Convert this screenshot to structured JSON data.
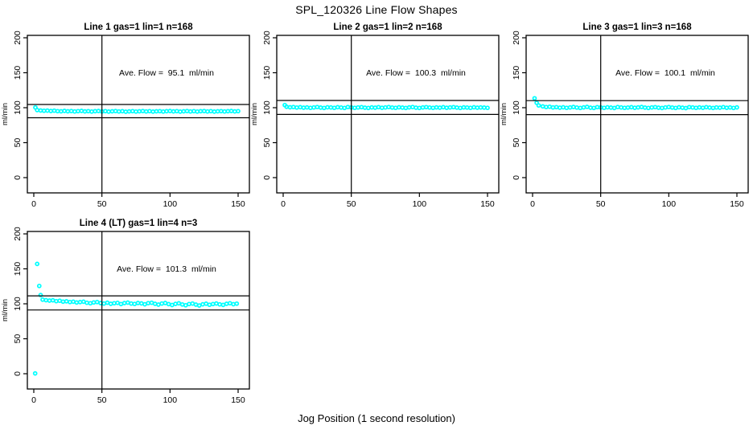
{
  "page": {
    "main_title": "SPL_120326  Line Flow Shapes",
    "x_axis_label": "Jog Position (1 second resolution)",
    "background_color": "#FFFFFF",
    "point_color": "#00FFFF",
    "line_color": "#000000"
  },
  "chart_data": [
    {
      "type": "scatter",
      "title": "Line 1 gas=1 lin=1 n=168",
      "annotation": "Ave. Flow =  95.1  ml/min",
      "ave_flow": 95.1,
      "ylabel": "ml/min",
      "xticks": [
        0,
        50,
        100,
        150
      ],
      "yticks": [
        0,
        50,
        100,
        150,
        200
      ],
      "xlim": [
        0,
        150
      ],
      "ylim": [
        0,
        200
      ],
      "grid": false,
      "ref_lines_y": [
        104.6,
        85.6
      ],
      "vline_x": 50,
      "row": 0,
      "col": 0,
      "x": [
        1.2,
        2.5,
        5,
        7.5,
        10,
        12.5,
        15,
        17.5,
        20,
        22.5,
        25,
        27.5,
        30,
        32.5,
        35,
        37.5,
        40,
        42.5,
        45,
        47.5,
        50,
        52.5,
        55,
        57.5,
        60,
        62.5,
        65,
        67.5,
        70,
        72.5,
        75,
        77.5,
        80,
        82.5,
        85,
        87.5,
        90,
        92.5,
        95,
        97.5,
        100,
        102.5,
        105,
        107.5,
        110,
        112.5,
        115,
        117.5,
        120,
        122.5,
        125,
        127.5,
        130,
        132.5,
        135,
        137.5,
        140,
        142.5,
        145,
        147.5,
        150
      ],
      "y": [
        100.4,
        96.6,
        96.0,
        95.6,
        95.9,
        95.3,
        95.7,
        95.1,
        94.8,
        95.4,
        94.8,
        95.2,
        94.6,
        95.0,
        95.4,
        94.7,
        95.1,
        94.5,
        94.9,
        95.3,
        94.6,
        95.0,
        94.4,
        94.8,
        95.2,
        94.6,
        94.9,
        94.3,
        94.7,
        95.1,
        94.5,
        94.8,
        95.2,
        94.6,
        95.0,
        94.4,
        94.8,
        95.1,
        94.5,
        94.9,
        95.3,
        94.7,
        95.0,
        94.4,
        94.8,
        95.2,
        94.6,
        95.0,
        94.5,
        94.9,
        95.2,
        94.6,
        95.0,
        94.4,
        94.8,
        95.1,
        94.6,
        94.9,
        95.3,
        94.7,
        95.0
      ]
    },
    {
      "type": "scatter",
      "title": "Line 2 gas=1 lin=2 n=168",
      "annotation": "Ave. Flow =  100.3  ml/min",
      "ave_flow": 100.3,
      "ylabel": "ml/min",
      "xticks": [
        0,
        50,
        100,
        150
      ],
      "yticks": [
        0,
        50,
        100,
        150,
        200
      ],
      "xlim": [
        0,
        150
      ],
      "ylim": [
        0,
        200
      ],
      "grid": false,
      "ref_lines_y": [
        110.3,
        90.3
      ],
      "vline_x": 50,
      "row": 0,
      "col": 1,
      "x": [
        1.2,
        2.5,
        5,
        7.5,
        10,
        12.5,
        15,
        17.5,
        20,
        22.5,
        25,
        27.5,
        30,
        32.5,
        35,
        37.5,
        40,
        42.5,
        45,
        47.5,
        50,
        52.5,
        55,
        57.5,
        60,
        62.5,
        65,
        67.5,
        70,
        72.5,
        75,
        77.5,
        80,
        82.5,
        85,
        87.5,
        90,
        92.5,
        95,
        97.5,
        100,
        102.5,
        105,
        107.5,
        110,
        112.5,
        115,
        117.5,
        120,
        122.5,
        125,
        127.5,
        130,
        132.5,
        135,
        137.5,
        140,
        142.5,
        145,
        147.5,
        150
      ],
      "y": [
        103.8,
        101.3,
        100.6,
        100.9,
        100.2,
        100.7,
        100.0,
        100.5,
        99.8,
        100.4,
        100.9,
        100.1,
        99.7,
        100.6,
        100.3,
        99.8,
        100.7,
        100.2,
        99.6,
        100.9,
        100.4,
        99.8,
        100.3,
        100.8,
        100.0,
        99.7,
        100.5,
        100.0,
        100.8,
        99.9,
        100.4,
        100.9,
        100.2,
        99.8,
        100.6,
        100.1,
        99.7,
        100.5,
        100.9,
        100.0,
        99.6,
        100.4,
        100.8,
        100.2,
        99.8,
        100.5,
        100.0,
        100.7,
        99.9,
        100.3,
        100.8,
        100.1,
        99.7,
        100.5,
        100.2,
        99.8,
        100.6,
        100.0,
        100.4,
        100.1,
        99.8
      ]
    },
    {
      "type": "scatter",
      "title": "Line 3 gas=1 lin=3 n=168",
      "annotation": "Ave. Flow =  100.1  ml/min",
      "ave_flow": 100.1,
      "ylabel": "ml/min",
      "xticks": [
        0,
        50,
        100,
        150
      ],
      "yticks": [
        0,
        50,
        100,
        150,
        200
      ],
      "xlim": [
        0,
        150
      ],
      "ylim": [
        0,
        200
      ],
      "grid": false,
      "ref_lines_y": [
        110.1,
        90.1
      ],
      "vline_x": 50,
      "row": 0,
      "col": 2,
      "x": [
        1.5,
        3,
        4.5,
        7.5,
        10,
        12.5,
        15,
        17.5,
        20,
        22.5,
        25,
        27.5,
        30,
        32.5,
        35,
        37.5,
        40,
        42.5,
        45,
        47.5,
        50,
        52.5,
        55,
        57.5,
        60,
        62.5,
        65,
        67.5,
        70,
        72.5,
        75,
        77.5,
        80,
        82.5,
        85,
        87.5,
        90,
        92.5,
        95,
        97.5,
        100,
        102.5,
        105,
        107.5,
        110,
        112.5,
        115,
        117.5,
        120,
        122.5,
        125,
        127.5,
        130,
        132.5,
        135,
        137.5,
        140,
        142.5,
        145,
        147.5,
        150
      ],
      "y": [
        113.5,
        107.0,
        103.2,
        101.8,
        100.9,
        101.4,
        100.3,
        100.8,
        100.0,
        100.6,
        99.8,
        100.4,
        101.0,
        100.2,
        99.7,
        100.5,
        101.1,
        100.0,
        99.6,
        100.8,
        100.3,
        99.8,
        100.6,
        100.1,
        99.5,
        100.9,
        100.4,
        99.8,
        100.2,
        100.7,
        99.9,
        100.5,
        101.0,
        100.1,
        99.6,
        100.4,
        100.8,
        100.0,
        99.5,
        100.3,
        100.9,
        100.2,
        99.7,
        100.6,
        100.0,
        99.4,
        100.8,
        100.3,
        99.8,
        100.5,
        99.9,
        100.7,
        100.1,
        99.6,
        100.4,
        100.0,
        100.8,
        99.9,
        100.3,
        99.7,
        100.5
      ]
    },
    {
      "type": "scatter",
      "title": "Line 4 (LT) gas=1 lin=4 n=3",
      "annotation": "Ave. Flow =  101.3  ml/min",
      "ave_flow": 101.3,
      "ylabel": "ml/min",
      "xticks": [
        0,
        50,
        100,
        150
      ],
      "yticks": [
        0,
        50,
        100,
        150,
        200
      ],
      "xlim": [
        0,
        150
      ],
      "ylim": [
        0,
        200
      ],
      "grid": false,
      "ref_lines_y": [
        111.4,
        91.2
      ],
      "vline_x": 50,
      "row": 1,
      "col": 0,
      "x": [
        1,
        2.5,
        4,
        5,
        6.5,
        9,
        11.5,
        14,
        16.5,
        19,
        21.5,
        24,
        26.5,
        29,
        31.5,
        34,
        36.5,
        39,
        41.5,
        44,
        46.5,
        49,
        51.5,
        54,
        56.5,
        59,
        61.5,
        64,
        66.5,
        69,
        71.5,
        74,
        76.5,
        79,
        81.5,
        84,
        86.5,
        89,
        91.5,
        94,
        96.5,
        99,
        101.5,
        104,
        106.5,
        109,
        111.5,
        114,
        116.5,
        119,
        121.5,
        124,
        126.5,
        129,
        131.5,
        134,
        136.5,
        139,
        141.5,
        144,
        146.5,
        149
      ],
      "y": [
        0.5,
        157.0,
        125.5,
        112.5,
        106.0,
        105.2,
        104.6,
        105.0,
        103.8,
        104.4,
        103.1,
        103.6,
        102.5,
        103.0,
        101.8,
        102.4,
        103.0,
        101.5,
        100.8,
        101.9,
        102.5,
        101.0,
        100.3,
        101.6,
        100.0,
        100.8,
        101.4,
        99.7,
        101.0,
        101.7,
        100.4,
        99.8,
        101.2,
        100.6,
        99.3,
        100.9,
        101.5,
        100.0,
        98.8,
        100.3,
        101.1,
        99.5,
        98.3,
        99.9,
        100.7,
        99.1,
        97.9,
        99.6,
        100.4,
        98.9,
        97.6,
        99.3,
        100.1,
        98.6,
        99.7,
        100.5,
        99.2,
        98.4,
        100.0,
        100.8,
        99.4,
        100.2
      ]
    }
  ]
}
